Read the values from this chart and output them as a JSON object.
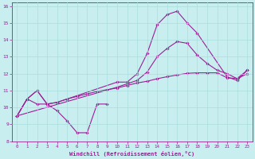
{
  "xlabel": "Windchill (Refroidissement éolien,°C)",
  "x_ticks": [
    0,
    1,
    2,
    3,
    4,
    5,
    6,
    7,
    8,
    9,
    10,
    11,
    12,
    13,
    14,
    15,
    16,
    17,
    18,
    19,
    20,
    21,
    22,
    23
  ],
  "y_ticks": [
    8,
    9,
    10,
    11,
    12,
    13,
    14,
    15,
    16
  ],
  "xlim": [
    -0.5,
    23.5
  ],
  "ylim": [
    8,
    16.2
  ],
  "bg_color": "#c8eef0",
  "line_color": "#9b1f96",
  "grid_color": "#aadddd",
  "lines": [
    {
      "x": [
        0,
        1,
        2,
        3,
        4,
        5,
        6,
        7,
        8,
        9
      ],
      "y": [
        9.5,
        10.5,
        10.2,
        10.2,
        9.8,
        9.2,
        8.5,
        8.5,
        10.2,
        10.2
      ]
    },
    {
      "x": [
        0,
        1,
        2,
        3,
        4,
        10,
        11,
        12,
        13,
        14,
        15,
        16,
        17,
        18,
        21,
        22,
        23
      ],
      "y": [
        9.5,
        10.5,
        11.0,
        10.2,
        10.3,
        11.5,
        11.5,
        12.0,
        13.2,
        14.9,
        15.5,
        15.7,
        15.0,
        14.4,
        11.8,
        11.6,
        12.2
      ]
    },
    {
      "x": [
        0,
        10,
        11,
        12,
        13,
        14,
        15,
        16,
        17,
        18,
        19,
        20,
        21,
        22,
        23
      ],
      "y": [
        9.5,
        11.2,
        11.4,
        11.6,
        12.1,
        13.0,
        13.5,
        13.9,
        13.8,
        13.1,
        12.6,
        12.2,
        12.0,
        11.7,
        12.0
      ]
    },
    {
      "x": [
        0,
        1,
        2,
        3,
        4,
        5,
        6,
        7,
        8,
        9,
        10,
        11,
        12,
        13,
        14,
        15,
        16,
        17,
        18,
        19,
        20,
        21,
        22,
        23
      ],
      "y": [
        9.5,
        10.5,
        11.0,
        10.2,
        10.3,
        10.5,
        10.65,
        10.8,
        10.95,
        11.05,
        11.15,
        11.3,
        11.45,
        11.55,
        11.7,
        11.82,
        11.92,
        12.02,
        12.05,
        12.05,
        12.05,
        11.75,
        11.72,
        12.2
      ]
    }
  ]
}
